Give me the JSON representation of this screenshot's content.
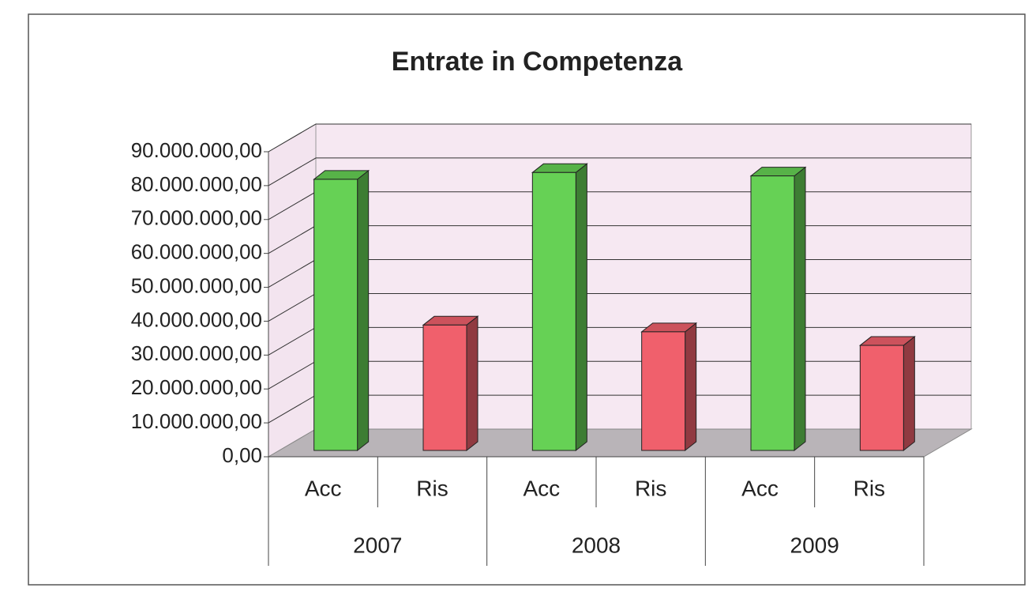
{
  "chart_data": {
    "type": "bar3d",
    "title": "Entrate in Competenza",
    "categories": [
      "Acc",
      "Ris",
      "Acc",
      "Ris",
      "Acc",
      "Ris"
    ],
    "group_labels": [
      "2007",
      "2008",
      "2009"
    ],
    "values": [
      80000000,
      37000000,
      82000000,
      35000000,
      81000000,
      31000000
    ],
    "colors": [
      "#66d155",
      "#f0606c",
      "#66d155",
      "#f0606c",
      "#66d155",
      "#f0606c"
    ],
    "ylim": [
      0,
      90000000
    ],
    "yticks": [
      {
        "value": 0,
        "label": "0,00"
      },
      {
        "value": 10000000,
        "label": "10.000.000,00"
      },
      {
        "value": 20000000,
        "label": "20.000.000,00"
      },
      {
        "value": 30000000,
        "label": "30.000.000,00"
      },
      {
        "value": 40000000,
        "label": "40.000.000,00"
      },
      {
        "value": 50000000,
        "label": "50.000.000,00"
      },
      {
        "value": 60000000,
        "label": "60.000.000,00"
      },
      {
        "value": 70000000,
        "label": "70.000.000,00"
      },
      {
        "value": 80000000,
        "label": "80.000.000,00"
      },
      {
        "value": 90000000,
        "label": "90.000.000,00"
      }
    ],
    "grid": true
  }
}
